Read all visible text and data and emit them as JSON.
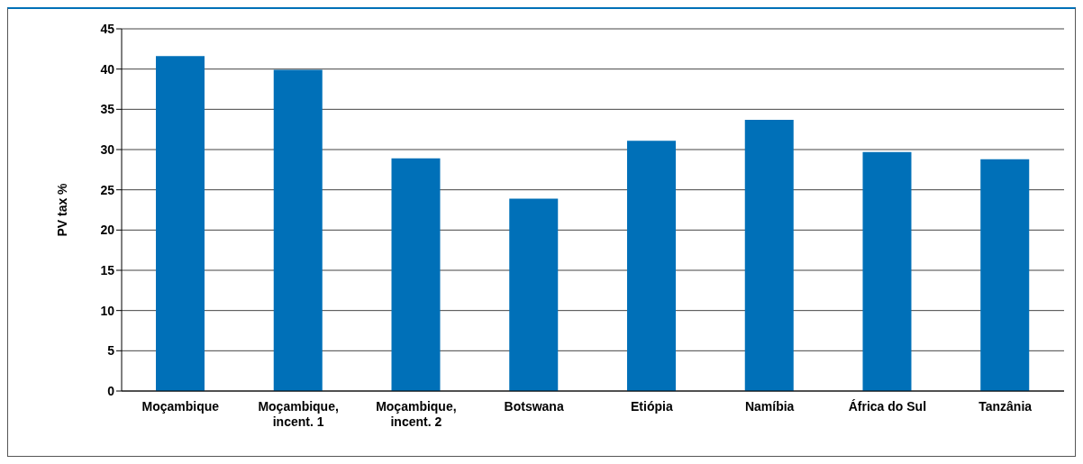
{
  "chart_data": {
    "type": "bar",
    "ylabel": "PV tax %",
    "categories": [
      "Moçambique",
      "Moçambique, incent. 1",
      "Moçambique, incent. 2",
      "Botswana",
      "Etiópia",
      "Namíbia",
      "África do Sul",
      "Tanzânia"
    ],
    "values": [
      41.6,
      39.9,
      28.9,
      23.9,
      31.1,
      33.7,
      29.7,
      28.8
    ],
    "color": "#0070b8",
    "ylim": [
      0,
      45
    ],
    "yticks": [
      0,
      5,
      10,
      15,
      20,
      25,
      30,
      35,
      40,
      45
    ],
    "grid": "y"
  }
}
